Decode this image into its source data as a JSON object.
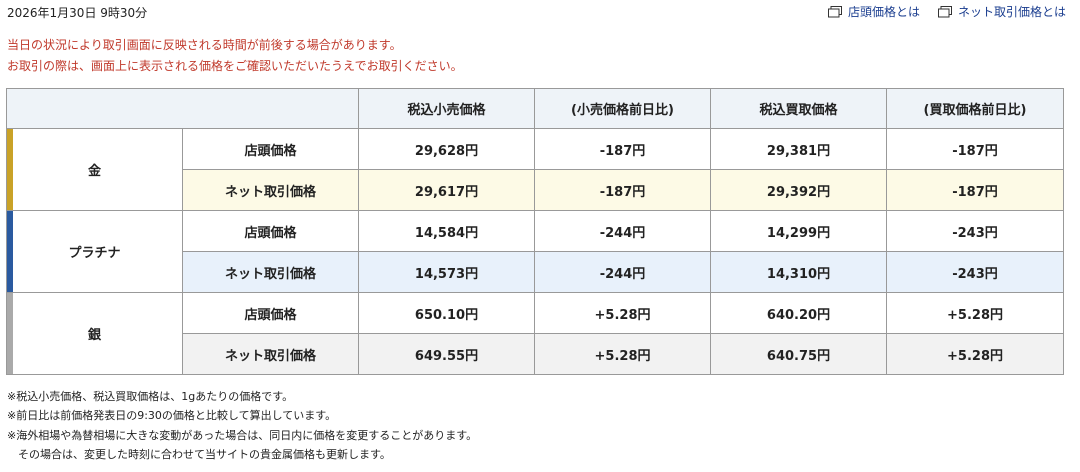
{
  "header": {
    "date": "2026年1月30日 9時30分",
    "links": [
      "店頭価格とは",
      "ネット取引価格とは"
    ]
  },
  "notices": [
    "当日の状況により取引画面に反映される時間が前後する場合があります。",
    "お取引の際は、画面上に表示される価格をご確認いただいたうえでお取引ください。"
  ],
  "table": {
    "columns": [
      "税込小売価格",
      "(小売価格前日比)",
      "税込買取価格",
      "(買取価格前日比)"
    ],
    "metals": [
      {
        "name": "金",
        "rows": [
          {
            "type": "店頭価格",
            "values": [
              "29,628円",
              "-187円",
              "29,381円",
              "-187円"
            ]
          },
          {
            "type": "ネット取引価格",
            "values": [
              "29,617円",
              "-187円",
              "29,392円",
              "-187円"
            ]
          }
        ]
      },
      {
        "name": "プラチナ",
        "rows": [
          {
            "type": "店頭価格",
            "values": [
              "14,584円",
              "-244円",
              "14,299円",
              "-243円"
            ]
          },
          {
            "type": "ネット取引価格",
            "values": [
              "14,573円",
              "-244円",
              "14,310円",
              "-243円"
            ]
          }
        ]
      },
      {
        "name": "銀",
        "rows": [
          {
            "type": "店頭価格",
            "values": [
              "650.10円",
              "+5.28円",
              "640.20円",
              "+5.28円"
            ]
          },
          {
            "type": "ネット取引価格",
            "values": [
              "649.55円",
              "+5.28円",
              "640.75円",
              "+5.28円"
            ]
          }
        ]
      }
    ]
  },
  "footnotes": [
    "※税込小売価格、税込買取価格は、1gあたりの価格です。",
    "※前日比は前価格発表日の9:30の価格と比較して算出しています。",
    "※海外相場や為替相場に大きな変動があった場合は、同日内に価格を変更することがあります。",
    "　その場合は、変更した時刻に合わせて当サイトの貴金属価格も更新します。"
  ]
}
